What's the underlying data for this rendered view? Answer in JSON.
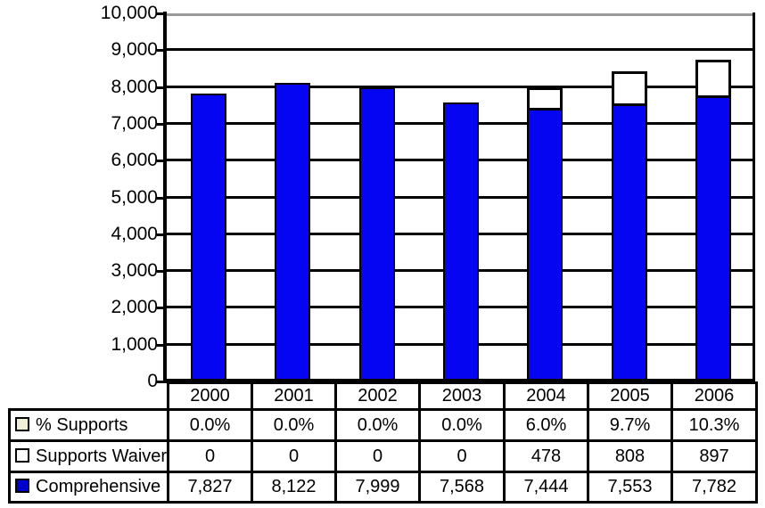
{
  "figure": {
    "background": "#ffffff",
    "plot_border_right_color": "#000000",
    "plot_border_top_color": "#999999"
  },
  "chart_data": {
    "type": "bar",
    "stacked": true,
    "categories": [
      "2000",
      "2001",
      "2002",
      "2003",
      "2004",
      "2005",
      "2006"
    ],
    "series": [
      {
        "name": "Comprehensive",
        "color": "#0505f2",
        "values": [
          7827,
          8122,
          7999,
          7568,
          7444,
          7553,
          7782
        ]
      },
      {
        "name": "Supports Waiver",
        "color": "#ffffff",
        "values": [
          0,
          0,
          0,
          0,
          478,
          808,
          897
        ]
      }
    ],
    "percent_supports_row": {
      "name": "% Supports",
      "values": [
        "0.0%",
        "0.0%",
        "0.0%",
        "0.0%",
        "6.0%",
        "9.7%",
        "10.3%"
      ]
    },
    "title": "",
    "xlabel": "",
    "ylabel": "",
    "ylim": [
      0,
      10000
    ],
    "ytick_step": 1000,
    "ytick_labels": [
      "0",
      "1,000",
      "2,000",
      "3,000",
      "4,000",
      "5,000",
      "6,000",
      "7,000",
      "8,000",
      "9,000",
      "10,000"
    ],
    "grid": "horizontal",
    "gridline_color": "#000000",
    "legend_position": "table-left-column"
  },
  "table": {
    "year_header": [
      "2000",
      "2001",
      "2002",
      "2003",
      "2004",
      "2005",
      "2006"
    ],
    "rows": [
      {
        "label": "% Supports",
        "marker_color": "#f0f0d8",
        "values": [
          "0.0%",
          "0.0%",
          "0.0%",
          "0.0%",
          "6.0%",
          "9.7%",
          "10.3%"
        ]
      },
      {
        "label": "Supports Waiver",
        "marker_color": "#ffffff",
        "values": [
          "0",
          "0",
          "0",
          "0",
          "478",
          "808",
          "897"
        ]
      },
      {
        "label": "Comprehensive",
        "marker_color": "#0000cc",
        "values": [
          "7,827",
          "8,122",
          "7,999",
          "7,568",
          "7,444",
          "7,553",
          "7,782"
        ]
      }
    ]
  }
}
